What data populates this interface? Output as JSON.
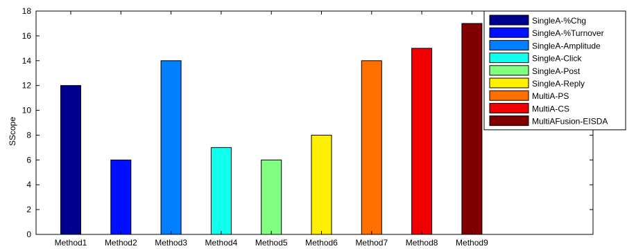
{
  "chart_data": {
    "type": "bar",
    "title": "",
    "xlabel": "",
    "ylabel": "SScope",
    "ylim": [
      0,
      18
    ],
    "yticks": [
      0,
      2,
      4,
      6,
      8,
      10,
      12,
      14,
      16,
      18
    ],
    "grid": false,
    "legend_position": "top-right",
    "categories": [
      "Method1",
      "Method2",
      "Method3",
      "Method4",
      "Method5",
      "Method6",
      "Method7",
      "Method8",
      "Method9"
    ],
    "values": [
      12,
      6,
      14,
      7,
      6,
      8,
      14,
      15,
      17
    ],
    "legend": [
      "SingleA-%Chg",
      "SingleA-%Turnover",
      "SingleA-Amplitude",
      "SingleA-Click",
      "SingleA-Post",
      "SingleA-Reply",
      "MultiA-PS",
      "MultiA-CS",
      "MultiAFusion-EISDA"
    ],
    "colors": [
      "#00008f",
      "#0010ff",
      "#0080ff",
      "#10ffef",
      "#80ff80",
      "#ffef00",
      "#ff7000",
      "#f00000",
      "#800000"
    ]
  }
}
